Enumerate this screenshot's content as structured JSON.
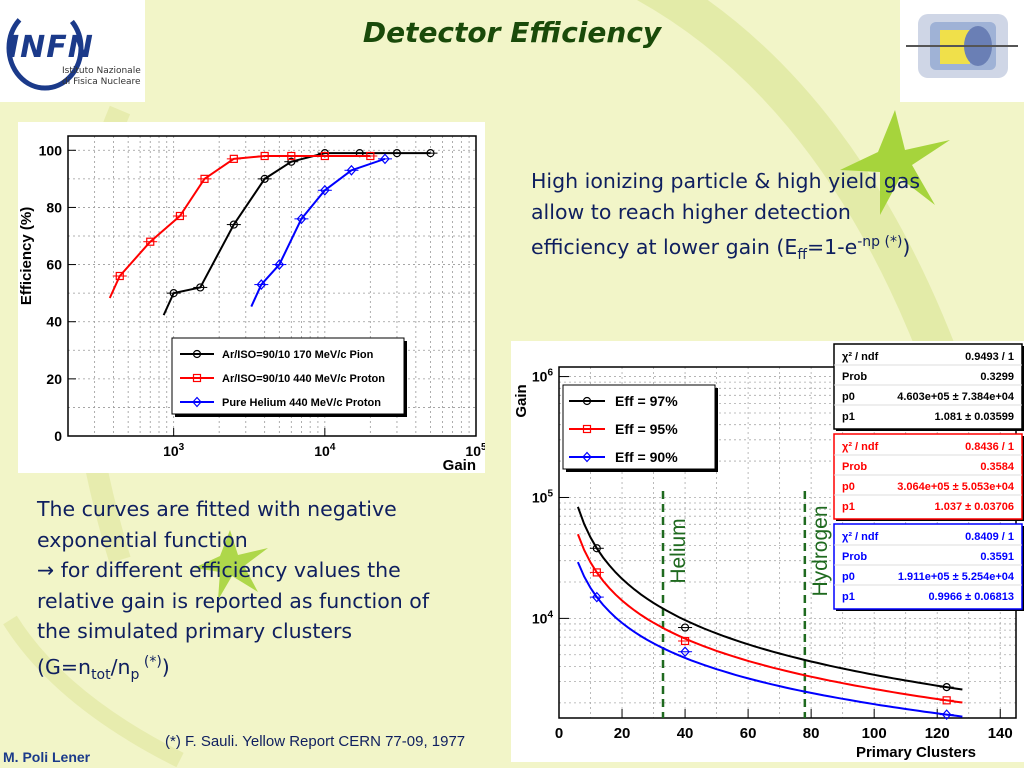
{
  "slide": {
    "title": "Detector Efficiency",
    "author": "M. Poli Lener",
    "footnote": "(*) F. Sauli. Yellow Report CERN 77-09, 1977"
  },
  "logo": {
    "brand": "INFN",
    "line1": "Istituto Nazionale",
    "line2": "di Fisica Nucleare"
  },
  "text1": {
    "line1": "High ionizing particle & high yield gas",
    "line2": "allow to reach higher detection",
    "line3_pre": "efficiency at lower gain (E",
    "line3_sub": "ff",
    "line3_mid": "=1-e",
    "line3_sup": "-np (*)",
    "line3_post": ")"
  },
  "text2": {
    "line1": "The curves are fitted with negative",
    "line2": "exponential function",
    "line3": "for different efficiency values the",
    "line4": "relative gain is reported as function of",
    "line5": "the simulated primary clusters",
    "line6_pre": "(G=n",
    "line6_sub1": "tot",
    "line6_mid": "/n",
    "line6_sub2": "p",
    "line6_sup": " (*)",
    "line6_post": ")",
    "arrow": "→"
  },
  "colors": {
    "black": "#000000",
    "red": "#ff0000",
    "blue": "#0000ff",
    "dashed": "#1f6a1f"
  },
  "chart_data": [
    {
      "type": "line",
      "xlabel": "Gain",
      "ylabel": "Efficiency (%)",
      "x_scale": "log",
      "xlim": [
        200,
        100000
      ],
      "ylim": [
        0,
        105
      ],
      "x_ticks": [
        1000,
        10000,
        100000
      ],
      "x_tick_labels": [
        [
          "10",
          "3"
        ],
        [
          "10",
          "4"
        ],
        [
          "10",
          "5"
        ]
      ],
      "y_ticks": [
        0,
        20,
        40,
        60,
        80,
        100
      ],
      "grid": true,
      "legend_position": "bottom-right",
      "series": [
        {
          "name": "Ar/ISO=90/10 170 MeV/c Pion",
          "color": "#000000",
          "marker": "circle",
          "x": [
            1000,
            1500,
            2500,
            4000,
            6000,
            10000,
            17000,
            30000,
            50000
          ],
          "y": [
            50,
            52,
            74,
            90,
            96,
            99,
            99,
            99,
            99
          ]
        },
        {
          "name": "Ar/ISO=90/10 440 MeV/c Proton",
          "color": "#ff0000",
          "marker": "square",
          "x": [
            440,
            700,
            1100,
            1600,
            2500,
            4000,
            6000,
            10000,
            20000
          ],
          "y": [
            56,
            68,
            77,
            90,
            97,
            98,
            98,
            98,
            98
          ]
        },
        {
          "name": "Pure Helium  440 MeV/c Proton",
          "color": "#0000ff",
          "marker": "diamond",
          "x": [
            3800,
            5000,
            7000,
            10000,
            15000,
            25000
          ],
          "y": [
            53,
            60,
            76,
            86,
            93,
            97
          ]
        }
      ]
    },
    {
      "type": "line",
      "xlabel": "Primary Clusters",
      "ylabel": "Gain",
      "y_scale": "log",
      "xlim": [
        0,
        145
      ],
      "ylim": [
        1500,
        1200000
      ],
      "x_ticks": [
        0,
        20,
        40,
        60,
        80,
        100,
        120,
        140
      ],
      "y_ticks": [
        10000,
        100000,
        1000000
      ],
      "y_tick_labels": [
        [
          "10",
          "4"
        ],
        [
          "10",
          "5"
        ],
        [
          "10",
          "6"
        ]
      ],
      "grid": true,
      "legend_position": "top-left",
      "annotations": [
        "Helium",
        "Hydrogen"
      ],
      "annotation_x": [
        33,
        78
      ],
      "series": [
        {
          "name": "Eff = 97%",
          "color": "#000000",
          "marker": "circle",
          "fit": {
            "p0": 460300,
            "p1": 1.081
          },
          "x": [
            12,
            40,
            123
          ],
          "y": [
            38000,
            8400,
            2700
          ]
        },
        {
          "name": "Eff = 95%",
          "color": "#ff0000",
          "marker": "square",
          "fit": {
            "p0": 306400,
            "p1": 1.037
          },
          "x": [
            12,
            40,
            123
          ],
          "y": [
            24000,
            6500,
            2100
          ]
        },
        {
          "name": "Eff = 90%",
          "color": "#0000ff",
          "marker": "diamond",
          "fit": {
            "p0": 191100,
            "p1": 0.9966
          },
          "x": [
            12,
            40,
            123
          ],
          "y": [
            15000,
            5300,
            1600
          ]
        }
      ],
      "stat_boxes": [
        {
          "color": "#000000",
          "rows": [
            [
              "χ² / ndf",
              "0.9493 / 1"
            ],
            [
              "Prob",
              "0.3299"
            ],
            [
              "p0",
              "4.603e+05 ± 7.384e+04"
            ],
            [
              "p1",
              "1.081 ± 0.03599"
            ]
          ]
        },
        {
          "color": "#ff0000",
          "rows": [
            [
              "χ² / ndf",
              "0.8436 / 1"
            ],
            [
              "Prob",
              "0.3584"
            ],
            [
              "p0",
              "3.064e+05 ± 5.053e+04"
            ],
            [
              "p1",
              "1.037 ± 0.03706"
            ]
          ]
        },
        {
          "color": "#0000ff",
          "rows": [
            [
              "χ² / ndf",
              "0.8409 / 1"
            ],
            [
              "Prob",
              "0.3591"
            ],
            [
              "p0",
              "1.911e+05 ± 5.254e+04"
            ],
            [
              "p1",
              "0.9966 ± 0.06813"
            ]
          ]
        }
      ]
    }
  ]
}
